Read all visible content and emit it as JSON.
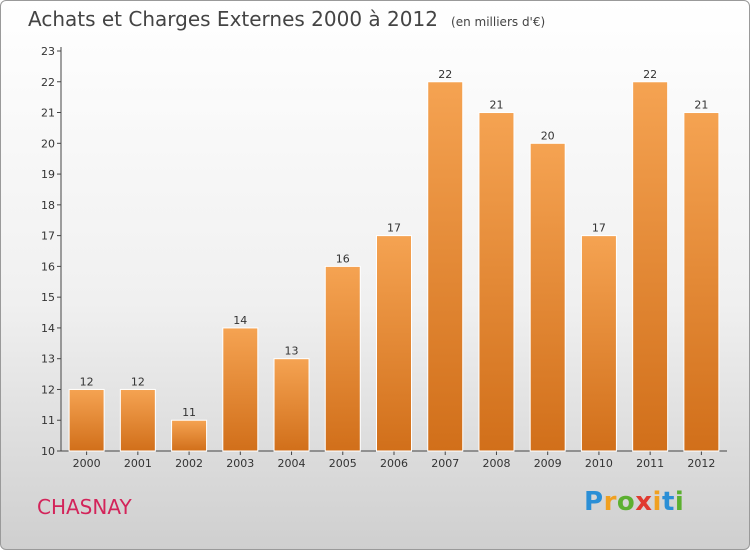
{
  "header": {
    "title": "Achats et Charges Externes 2000 à 2012",
    "subtitle": "(en milliers d'€)"
  },
  "place": "CHASNAY",
  "logo": {
    "letters": [
      "P",
      "r",
      "o",
      "x",
      "i",
      "t",
      "i"
    ],
    "colors": [
      "#2b8fd6",
      "#f0a020",
      "#5cb030",
      "#e03a30",
      "#f0a020",
      "#2b8fd6",
      "#5cb030"
    ]
  },
  "colors": {
    "bar_top": "#f5a352",
    "bar_bottom": "#d16f1a",
    "axis": "#444444"
  },
  "chart_data": {
    "type": "bar",
    "title": "Achats et Charges Externes 2000 à 2012",
    "subtitle": "(en milliers d'€)",
    "categories": [
      "2000",
      "2001",
      "2002",
      "2003",
      "2004",
      "2005",
      "2006",
      "2007",
      "2008",
      "2009",
      "2010",
      "2011",
      "2012"
    ],
    "values": [
      12,
      12,
      11,
      14,
      13,
      16,
      17,
      22,
      21,
      20,
      17,
      22,
      21
    ],
    "ylim": [
      10,
      23
    ],
    "yticks": [
      10,
      11,
      12,
      13,
      14,
      15,
      16,
      17,
      18,
      19,
      20,
      21,
      22,
      23
    ],
    "grid": false,
    "xlabel": "",
    "ylabel": ""
  }
}
